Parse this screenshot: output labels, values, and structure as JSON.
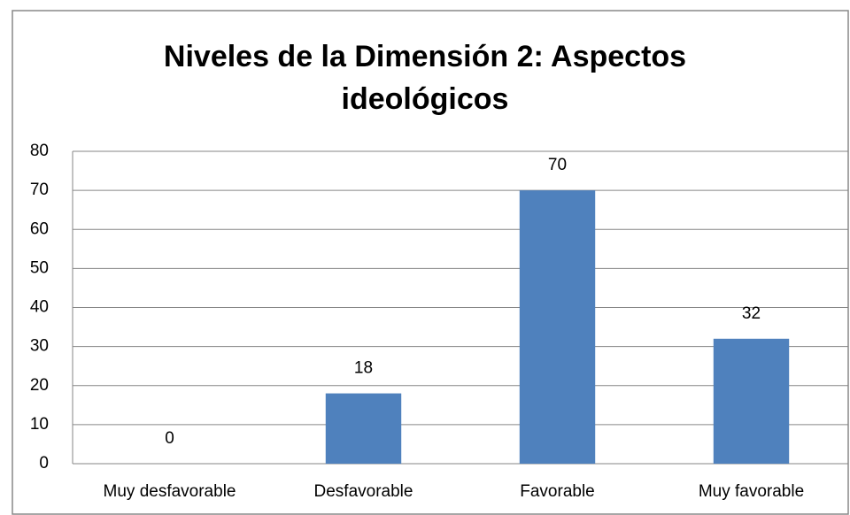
{
  "chart_data": {
    "type": "bar",
    "title": "Niveles de la Dimensión 2: Aspectos ideológicos",
    "categories": [
      "Muy desfavorable",
      "Desfavorable",
      "Favorable",
      "Muy favorable"
    ],
    "values": [
      0,
      18,
      70,
      32
    ],
    "color": "#4f81bd",
    "ylim": [
      0,
      80
    ],
    "yticks": [
      0,
      10,
      20,
      30,
      40,
      50,
      60,
      70,
      80
    ],
    "grid": true
  }
}
